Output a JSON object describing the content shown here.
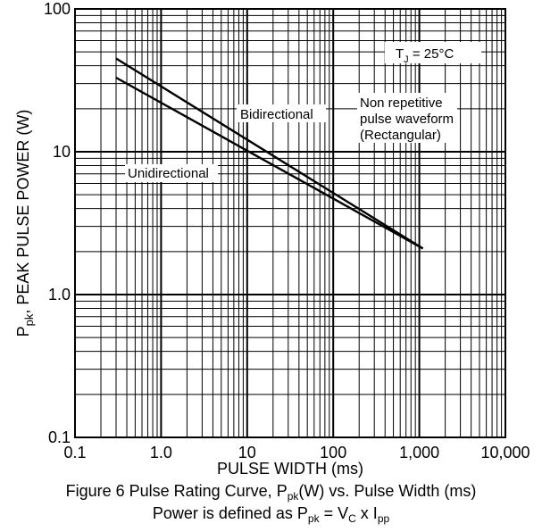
{
  "chart_data": {
    "type": "line",
    "x_scale": "log",
    "y_scale": "log",
    "xlim": [
      0.1,
      10000
    ],
    "ylim": [
      0.1,
      100
    ],
    "grid": true,
    "x_ticks": [
      "0.1",
      "1.0",
      "10",
      "100",
      "1,000",
      "10,000"
    ],
    "y_ticks": [
      "100",
      "10",
      "1.0",
      "0.1"
    ],
    "xlabel": "PULSE WIDTH (ms)",
    "ylabel": {
      "p": "P",
      "sub": "pk",
      "rest": ", PEAK PULSE POWER (W)"
    },
    "series": [
      {
        "name": "Bidirectional",
        "x": [
          0.3,
          1100
        ],
        "y": [
          45,
          2.1
        ]
      },
      {
        "name": "Unidirectional",
        "x": [
          0.3,
          1100
        ],
        "y": [
          33,
          2.1
        ]
      }
    ],
    "annotations": {
      "tj": {
        "t": "T",
        "sub": "J",
        "rest": " = 25°C"
      },
      "waveform": [
        "Non repetitive",
        "pulse waveform",
        "(Rectangular)"
      ]
    }
  },
  "caption": {
    "line1": {
      "a": "Figure 6  Pulse Rating Curve, P",
      "sub": "pk",
      "b": "(W) vs. Pulse Width (ms)"
    },
    "line2": {
      "a": "Power is defined as P",
      "sub1": "pk",
      "b": " = V",
      "sub2": "C",
      "c": " x I",
      "sub3": "pp"
    }
  }
}
